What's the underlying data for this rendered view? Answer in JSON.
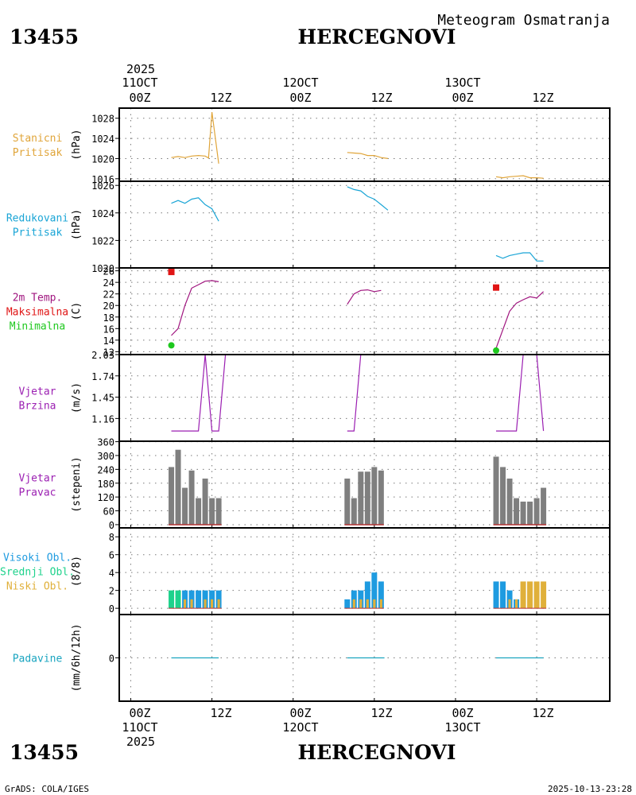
{
  "header": {
    "station_id": "13455",
    "station_name": "HERCEGNOVI",
    "chart_title": "Meteogram Osmatranja",
    "footer_left": "GrADS: COLA/IGES",
    "footer_right": "2025-10-13-23:28"
  },
  "x_axis": {
    "year": "2025",
    "day_labels": [
      "11OCT",
      "12OCT",
      "13OCT"
    ],
    "hour_labels": [
      "00Z",
      "12Z",
      "00Z",
      "12Z",
      "00Z",
      "12Z"
    ]
  },
  "colors": {
    "station_pressure": "#e0a53a",
    "reduced_pressure": "#1aa5d6",
    "temperature": "#a0157f",
    "tmax": "#e01515",
    "tmin": "#1ec81e",
    "wind": "#9b1fb2",
    "wind_dir": "#7f7f7f",
    "cloud_high": "#1e9be0",
    "cloud_mid": "#1ed28c",
    "cloud_low": "#e0b03a",
    "precip": "#1aa5c0",
    "baseline": "#b43232",
    "axes": "#000000",
    "grid": "#7a7a7a"
  },
  "chart_data": {
    "type": "line",
    "x_unit": "hours since 2025-10-11 00Z",
    "x_range": [
      -1.7,
      70.8
    ],
    "panels": [
      {
        "key": "station_pressure",
        "labels": [
          "Stanicni",
          "Pritisak"
        ],
        "label_colors": [
          "station_pressure",
          "station_pressure"
        ],
        "unit": "(hPa)",
        "ylim": [
          1015.5,
          1030.0
        ],
        "ticks": [
          1016,
          1020,
          1024,
          1028
        ],
        "series": [
          {
            "name": "Stanicni Pritisak",
            "color": "station_pressure",
            "type": "line",
            "segments": [
              [
                [
                  6,
                  1020.2
                ],
                [
                  7,
                  1020.4
                ],
                [
                  8,
                  1020.2
                ],
                [
                  9,
                  1020.5
                ],
                [
                  10,
                  1020.6
                ],
                [
                  11,
                  1020.5
                ],
                [
                  11.5,
                  1020.1
                ],
                [
                  12,
                  1029.2
                ],
                [
                  13,
                  1019.0
                ]
              ],
              [
                [
                  32,
                  1021.2
                ],
                [
                  33,
                  1021.1
                ],
                [
                  34,
                  1021.0
                ],
                [
                  35,
                  1020.6
                ],
                [
                  36,
                  1020.6
                ],
                [
                  37,
                  1020.2
                ],
                [
                  38,
                  1020.0
                ]
              ],
              [
                [
                  54,
                  1016.4
                ],
                [
                  55,
                  1016.2
                ],
                [
                  56,
                  1016.4
                ],
                [
                  57,
                  1016.5
                ],
                [
                  58,
                  1016.6
                ],
                [
                  59,
                  1016.2
                ],
                [
                  60,
                  1016.2
                ],
                [
                  61,
                  1016.1
                ]
              ]
            ]
          }
        ]
      },
      {
        "key": "reduced_pressure",
        "labels": [
          "Redukovani",
          "Pritisak"
        ],
        "label_colors": [
          "reduced_pressure",
          "reduced_pressure"
        ],
        "unit": "(hPa)",
        "ylim": [
          1020.0,
          1026.3
        ],
        "ticks": [
          1020,
          1022,
          1024,
          1026
        ],
        "series": [
          {
            "name": "Redukovani Pritisak",
            "color": "reduced_pressure",
            "type": "line",
            "segments": [
              [
                [
                  6,
                  1024.7
                ],
                [
                  7,
                  1024.9
                ],
                [
                  8,
                  1024.7
                ],
                [
                  9,
                  1025.0
                ],
                [
                  10,
                  1025.1
                ],
                [
                  11,
                  1024.6
                ],
                [
                  12,
                  1024.3
                ],
                [
                  13,
                  1023.4
                ]
              ],
              [
                [
                  32,
                  1025.9
                ],
                [
                  33,
                  1025.7
                ],
                [
                  34,
                  1025.6
                ],
                [
                  35,
                  1025.2
                ],
                [
                  36,
                  1025.0
                ],
                [
                  37,
                  1024.6
                ],
                [
                  38,
                  1024.2
                ]
              ],
              [
                [
                  54,
                  1020.9
                ],
                [
                  55,
                  1020.7
                ],
                [
                  56,
                  1020.9
                ],
                [
                  57,
                  1021.0
                ],
                [
                  58,
                  1021.1
                ],
                [
                  59,
                  1021.1
                ],
                [
                  60,
                  1020.5
                ],
                [
                  61,
                  1020.5
                ]
              ]
            ]
          }
        ]
      },
      {
        "key": "temperature",
        "labels": [
          "2m Temp.",
          "Maksimalna",
          "Minimalna"
        ],
        "label_colors": [
          "temperature",
          "tmax",
          "tmin"
        ],
        "unit": "(C)",
        "ylim": [
          11.5,
          26.5
        ],
        "ticks": [
          12,
          14,
          16,
          18,
          20,
          22,
          24,
          26
        ],
        "series": [
          {
            "name": "2m Temp.",
            "color": "temperature",
            "type": "line",
            "segments": [
              [
                [
                  6,
                  14.8
                ],
                [
                  7,
                  16.0
                ],
                [
                  8,
                  20.0
                ],
                [
                  9,
                  23.0
                ],
                [
                  10,
                  23.6
                ],
                [
                  11,
                  24.2
                ],
                [
                  12,
                  24.3
                ],
                [
                  13,
                  24.1
                ]
              ],
              [
                [
                  32,
                  20.2
                ],
                [
                  33,
                  22.0
                ],
                [
                  34,
                  22.6
                ],
                [
                  35,
                  22.7
                ],
                [
                  36,
                  22.4
                ],
                [
                  37,
                  22.6
                ]
              ],
              [
                [
                  54,
                  12.6
                ],
                [
                  55,
                  15.8
                ],
                [
                  56,
                  19.0
                ],
                [
                  57,
                  20.4
                ],
                [
                  58,
                  21.0
                ],
                [
                  59,
                  21.5
                ],
                [
                  60,
                  21.3
                ],
                [
                  61,
                  22.4
                ]
              ]
            ]
          },
          {
            "name": "Maksimalna",
            "color": "tmax",
            "type": "square",
            "points": [
              [
                6,
                25.8
              ],
              [
                54,
                23.1
              ]
            ]
          },
          {
            "name": "Minimalna",
            "color": "tmin",
            "type": "dot",
            "points": [
              [
                6,
                13.1
              ],
              [
                54,
                12.2
              ]
            ]
          }
        ]
      },
      {
        "key": "wind_speed",
        "labels": [
          "Vjetar",
          "Brzina"
        ],
        "label_colors": [
          "wind",
          "wind"
        ],
        "unit": "(m/s)",
        "ylim": [
          0.85,
          2.03
        ],
        "ticks": [
          1.16,
          1.45,
          1.74,
          2.03
        ],
        "series": [
          {
            "name": "Vjetar Brzina",
            "color": "wind",
            "type": "line",
            "segments": [
              [
                [
                  6,
                  0.99
                ],
                [
                  7,
                  0.99
                ],
                [
                  8,
                  0.99
                ],
                [
                  9,
                  0.99
                ],
                [
                  10,
                  0.99
                ],
                [
                  11,
                  2.03
                ],
                [
                  12,
                  0.99
                ],
                [
                  13,
                  0.99
                ],
                [
                  14,
                  2.03
                ]
              ],
              [
                [
                  32,
                  0.99
                ],
                [
                  33,
                  0.99
                ],
                [
                  34,
                  2.03
                ],
                [
                  35,
                  2.03
                ],
                [
                  36,
                  2.03
                ],
                [
                  37,
                  2.03
                ],
                [
                  38,
                  2.03
                ]
              ],
              [
                [
                  54,
                  0.99
                ],
                [
                  55,
                  0.99
                ],
                [
                  56,
                  0.99
                ],
                [
                  57,
                  0.99
                ],
                [
                  58,
                  2.03
                ],
                [
                  59,
                  2.03
                ],
                [
                  60,
                  2.03
                ],
                [
                  61,
                  0.99
                ]
              ]
            ]
          }
        ]
      },
      {
        "key": "wind_dir",
        "labels": [
          "Vjetar",
          "Pravac"
        ],
        "label_colors": [
          "wind",
          "wind"
        ],
        "unit": "(stepeni)",
        "ylim": [
          -14,
          362
        ],
        "ticks": [
          0,
          60,
          120,
          180,
          240,
          300,
          360
        ],
        "series": [
          {
            "name": "Vjetar Pravac",
            "color": "wind_dir",
            "type": "bar",
            "bar_width": 0.82,
            "baseline_color": "baseline",
            "groups": [
              [
                [
                  6,
                  250
                ],
                [
                  7,
                  325
                ],
                [
                  8,
                  160
                ],
                [
                  9,
                  235
                ],
                [
                  10,
                  115
                ],
                [
                  11,
                  200
                ],
                [
                  12,
                  115
                ],
                [
                  13,
                  115
                ]
              ],
              [
                [
                  32,
                  200
                ],
                [
                  33,
                  115
                ],
                [
                  34,
                  230
                ],
                [
                  35,
                  230
                ],
                [
                  36,
                  250
                ],
                [
                  37,
                  235
                ]
              ],
              [
                [
                  54,
                  295
                ],
                [
                  55,
                  250
                ],
                [
                  56,
                  200
                ],
                [
                  57,
                  115
                ],
                [
                  58,
                  100
                ],
                [
                  59,
                  100
                ],
                [
                  60,
                  115
                ],
                [
                  61,
                  160
                ]
              ]
            ]
          }
        ]
      },
      {
        "key": "clouds",
        "labels": [
          "Visoki Obl.",
          "Srednji Obl.",
          "Niski Obl."
        ],
        "label_colors": [
          "cloud_high",
          "cloud_mid",
          "cloud_low"
        ],
        "unit": "(8/8)",
        "ylim": [
          -0.7,
          9.0
        ],
        "ticks": [
          0,
          2,
          4,
          6,
          8
        ],
        "series": [
          {
            "name": "Oblacnost",
            "type": "stacked_bar",
            "bar_width": 0.82,
            "baseline_color": "baseline",
            "groups": [
              [
                [
                  6,
                  "cloud_mid",
                  2,
                  0
                ],
                [
                  7,
                  "cloud_mid",
                  2,
                  0
                ],
                [
                  8,
                  "cloud_high",
                  2,
                  1
                ],
                [
                  9,
                  "cloud_high",
                  2,
                  1
                ],
                [
                  10,
                  "cloud_high",
                  2,
                  0
                ],
                [
                  11,
                  "cloud_high",
                  2,
                  1
                ],
                [
                  12,
                  "cloud_high",
                  2,
                  1
                ],
                [
                  13,
                  "cloud_high",
                  2,
                  1
                ]
              ],
              [
                [
                  32,
                  "cloud_high",
                  1,
                  0
                ],
                [
                  33,
                  "cloud_high",
                  2,
                  1
                ],
                [
                  34,
                  "cloud_high",
                  2,
                  1
                ],
                [
                  35,
                  "cloud_high",
                  3,
                  1
                ],
                [
                  36,
                  "cloud_high",
                  4,
                  1
                ],
                [
                  37,
                  "cloud_high",
                  3,
                  1
                ]
              ],
              [
                [
                  54,
                  "cloud_high",
                  3,
                  0
                ],
                [
                  55,
                  "cloud_high",
                  3,
                  0
                ],
                [
                  56,
                  "cloud_high",
                  2,
                  1
                ],
                [
                  57,
                  "cloud_high",
                  1,
                  1
                ],
                [
                  58,
                  "cloud_low",
                  3,
                  3
                ],
                [
                  59,
                  "cloud_low",
                  3,
                  3
                ],
                [
                  60,
                  "cloud_low",
                  3,
                  3
                ],
                [
                  61,
                  "cloud_low",
                  3,
                  3
                ]
              ]
            ]
          }
        ]
      },
      {
        "key": "precip",
        "labels": [
          "Padavine"
        ],
        "label_colors": [
          "precip"
        ],
        "unit": "(mm/6h/12h)",
        "ylim": [
          -0.5,
          0.5
        ],
        "ticks": [
          0
        ],
        "series": [
          {
            "name": "Padavine",
            "color": "precip",
            "type": "line",
            "segments": [
              [
                [
                  6,
                  0
                ],
                [
                  13,
                  0
                ]
              ],
              [
                [
                  32,
                  0
                ],
                [
                  37.5,
                  0
                ]
              ],
              [
                [
                  54,
                  0
                ],
                [
                  61,
                  0
                ]
              ]
            ]
          }
        ]
      }
    ]
  }
}
